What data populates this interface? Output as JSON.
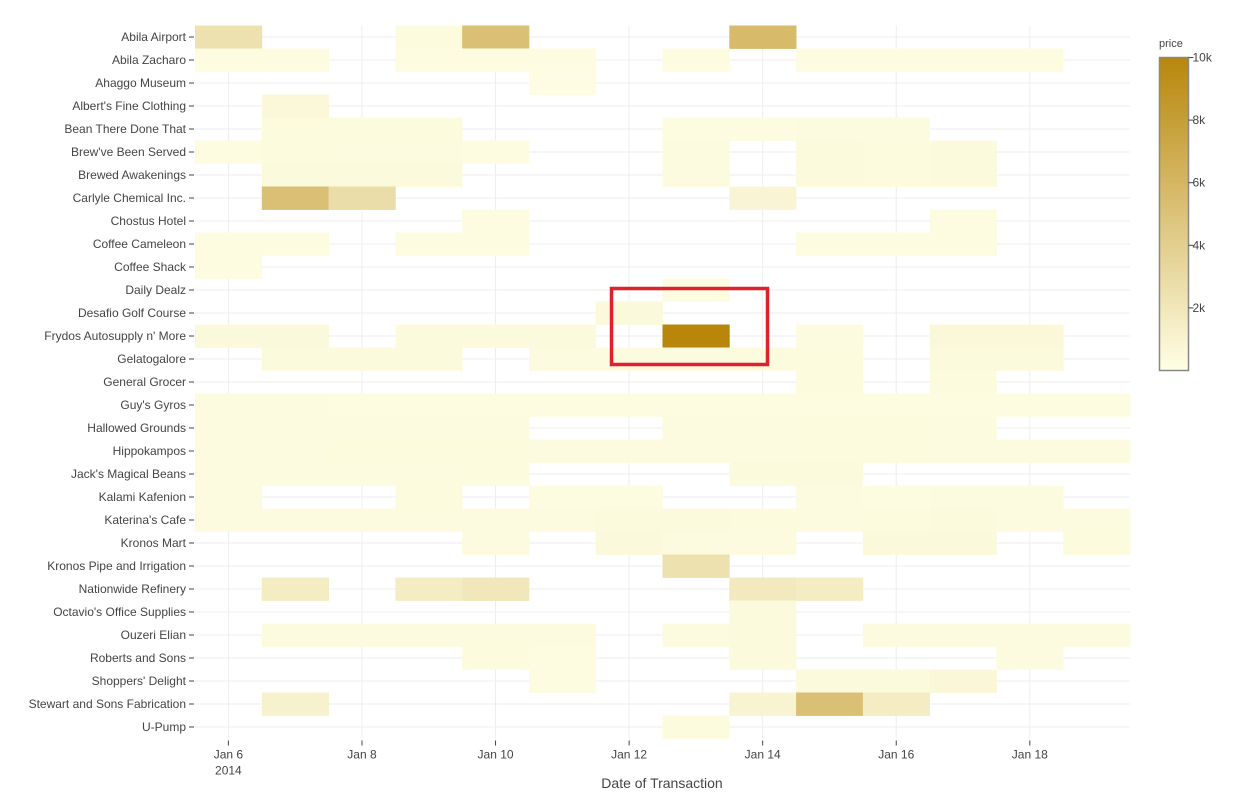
{
  "chart_data": {
    "type": "heatmap",
    "xlabel": "Date of Transaction",
    "x_dates": [
      "2014-01-06",
      "2014-01-07",
      "2014-01-08",
      "2014-01-09",
      "2014-01-10",
      "2014-01-11",
      "2014-01-12",
      "2014-01-13",
      "2014-01-14",
      "2014-01-15",
      "2014-01-16",
      "2014-01-17",
      "2014-01-18",
      "2014-01-19"
    ],
    "x_ticks": [
      {
        "date": "2014-01-06",
        "label": "Jan 6",
        "sublabel": "2014"
      },
      {
        "date": "2014-01-08",
        "label": "Jan 8",
        "sublabel": ""
      },
      {
        "date": "2014-01-10",
        "label": "Jan 10",
        "sublabel": ""
      },
      {
        "date": "2014-01-12",
        "label": "Jan 12",
        "sublabel": ""
      },
      {
        "date": "2014-01-14",
        "label": "Jan 14",
        "sublabel": ""
      },
      {
        "date": "2014-01-16",
        "label": "Jan 16",
        "sublabel": ""
      },
      {
        "date": "2014-01-18",
        "label": "Jan 18",
        "sublabel": ""
      }
    ],
    "categories": [
      "Abila Airport",
      "Abila Zacharo",
      "Ahaggo Museum",
      "Albert's Fine Clothing",
      "Bean There Done That",
      "Brew've Been Served",
      "Brewed Awakenings",
      "Carlyle Chemical Inc.",
      "Chostus Hotel",
      "Coffee Cameleon",
      "Coffee Shack",
      "Daily Dealz",
      "Desafio Golf Course",
      "Frydos Autosupply n' More",
      "Gelatogalore",
      "General Grocer",
      "Guy's Gyros",
      "Hallowed Grounds",
      "Hippokampos",
      "Jack's Magical Beans",
      "Kalami Kafenion",
      "Katerina's Cafe",
      "Kronos Mart",
      "Kronos Pipe and Irrigation",
      "Nationwide Refinery",
      "Octavio's Office Supplies",
      "Ouzeri Elian",
      "Roberts and Sons",
      "Shoppers' Delight",
      "Stewart and Sons Fabrication",
      "U-Pump"
    ],
    "z": [
      [
        2500,
        null,
        null,
        350,
        5200,
        null,
        null,
        null,
        5600,
        null,
        null,
        null,
        null,
        null
      ],
      [
        250,
        250,
        null,
        250,
        250,
        250,
        null,
        250,
        null,
        250,
        250,
        250,
        250,
        null
      ],
      [
        null,
        null,
        null,
        null,
        null,
        150,
        null,
        null,
        null,
        null,
        null,
        null,
        null,
        null
      ],
      [
        null,
        600,
        null,
        null,
        null,
        null,
        null,
        null,
        null,
        null,
        null,
        null,
        null,
        null
      ],
      [
        null,
        350,
        350,
        350,
        null,
        null,
        null,
        250,
        250,
        300,
        300,
        null,
        null,
        null
      ],
      [
        250,
        350,
        300,
        300,
        250,
        null,
        null,
        300,
        null,
        400,
        350,
        400,
        null,
        null
      ],
      [
        null,
        450,
        400,
        450,
        null,
        null,
        null,
        300,
        null,
        450,
        350,
        400,
        null,
        null
      ],
      [
        null,
        5200,
        2800,
        null,
        null,
        null,
        null,
        null,
        800,
        null,
        null,
        null,
        null,
        null
      ],
      [
        null,
        null,
        null,
        null,
        250,
        null,
        null,
        null,
        null,
        null,
        null,
        250,
        null,
        null
      ],
      [
        250,
        250,
        null,
        250,
        250,
        null,
        null,
        null,
        null,
        250,
        250,
        250,
        null,
        null
      ],
      [
        250,
        null,
        null,
        null,
        null,
        null,
        null,
        null,
        null,
        null,
        null,
        null,
        null,
        null
      ],
      [
        null,
        null,
        null,
        null,
        null,
        null,
        null,
        250,
        null,
        null,
        null,
        null,
        null,
        null
      ],
      [
        null,
        null,
        null,
        null,
        null,
        null,
        500,
        null,
        null,
        null,
        null,
        null,
        null,
        null
      ],
      [
        500,
        500,
        null,
        450,
        450,
        450,
        null,
        10000,
        null,
        300,
        null,
        600,
        600,
        null
      ],
      [
        null,
        400,
        400,
        400,
        null,
        300,
        300,
        300,
        350,
        350,
        null,
        450,
        400,
        null
      ],
      [
        null,
        null,
        null,
        null,
        null,
        null,
        null,
        null,
        null,
        350,
        null,
        350,
        null,
        null
      ],
      [
        300,
        300,
        250,
        250,
        250,
        250,
        250,
        250,
        250,
        250,
        250,
        250,
        250,
        250
      ],
      [
        300,
        300,
        300,
        300,
        300,
        null,
        null,
        300,
        300,
        350,
        350,
        300,
        null,
        null
      ],
      [
        300,
        300,
        350,
        350,
        350,
        300,
        300,
        300,
        300,
        350,
        350,
        300,
        300,
        300
      ],
      [
        300,
        300,
        300,
        300,
        350,
        null,
        null,
        null,
        450,
        450,
        null,
        null,
        null,
        null
      ],
      [
        300,
        null,
        null,
        350,
        null,
        250,
        250,
        null,
        null,
        300,
        250,
        300,
        300,
        null
      ],
      [
        300,
        300,
        300,
        300,
        300,
        300,
        400,
        400,
        350,
        300,
        350,
        400,
        300,
        300
      ],
      [
        null,
        null,
        null,
        null,
        300,
        null,
        500,
        300,
        300,
        null,
        500,
        500,
        null,
        350
      ],
      [
        null,
        null,
        null,
        null,
        null,
        null,
        null,
        2500,
        null,
        null,
        null,
        null,
        null,
        null
      ],
      [
        null,
        1600,
        null,
        1600,
        2000,
        null,
        null,
        null,
        1800,
        1600,
        null,
        null,
        null,
        null
      ],
      [
        null,
        null,
        null,
        null,
        null,
        null,
        null,
        null,
        450,
        null,
        null,
        null,
        null,
        null
      ],
      [
        null,
        300,
        300,
        300,
        300,
        300,
        null,
        300,
        400,
        null,
        300,
        300,
        300,
        300
      ],
      [
        null,
        null,
        null,
        null,
        350,
        250,
        null,
        null,
        400,
        null,
        null,
        null,
        300,
        null
      ],
      [
        null,
        null,
        null,
        null,
        null,
        250,
        null,
        null,
        null,
        450,
        450,
        650,
        null,
        null
      ],
      [
        null,
        1100,
        null,
        null,
        null,
        null,
        null,
        null,
        1000,
        5200,
        1600,
        null,
        null,
        null
      ],
      [
        null,
        null,
        null,
        null,
        null,
        null,
        null,
        350,
        null,
        null,
        null,
        null,
        null,
        null
      ]
    ],
    "colorscale": {
      "title": "price",
      "min": 0,
      "max": 10000,
      "low_color": "#FFFFE6",
      "high_color": "#B8860B",
      "ticks": [
        {
          "value": 2000,
          "label": "2k"
        },
        {
          "value": 4000,
          "label": "4k"
        },
        {
          "value": 6000,
          "label": "6k"
        },
        {
          "value": 8000,
          "label": "8k"
        },
        {
          "value": 10000,
          "label": "10k"
        }
      ]
    },
    "grid": true,
    "annotation": {
      "type": "rectangle",
      "color": "#E0202A"
    }
  }
}
